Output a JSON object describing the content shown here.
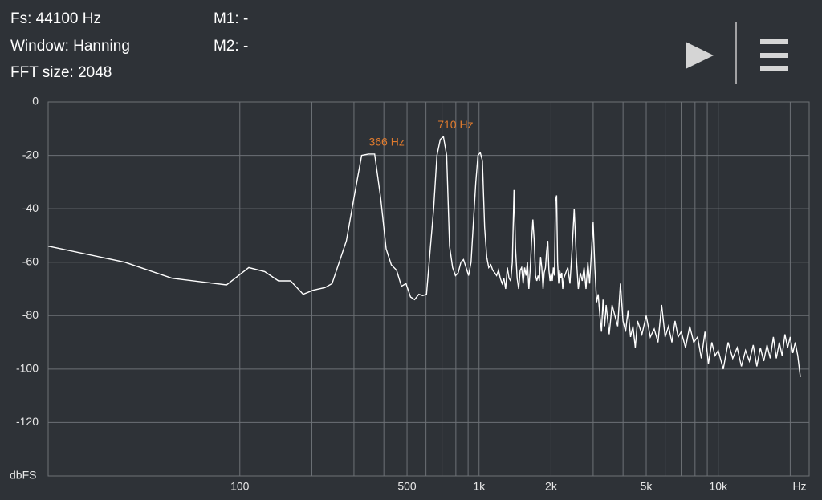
{
  "header": {
    "fs": "Fs: 44100 Hz",
    "window": "Window: Hanning",
    "fft_size": "FFT size: 2048",
    "m1": "M1: -",
    "m2": "M2: -"
  },
  "chart_data": {
    "type": "line",
    "x_label": "Hz",
    "y_label": "dbFS",
    "color": "#ffffff",
    "log_x": true,
    "grid": true,
    "xlim": [
      15.8,
      24000
    ],
    "ylim": [
      -140,
      0
    ],
    "xticks": [
      100,
      500,
      {
        "value": 1000,
        "label": "1k"
      },
      {
        "value": 2000,
        "label": "2k"
      },
      {
        "value": 5000,
        "label": "5k"
      },
      {
        "value": 10000,
        "label": "10k"
      }
    ],
    "xminor": [
      200,
      300,
      400,
      600,
      700,
      800,
      900,
      3000,
      4000,
      6000,
      7000,
      8000,
      9000,
      20000
    ],
    "yticks": [
      0,
      -20,
      -40,
      -60,
      -80,
      -100,
      -120
    ],
    "markers": [
      {
        "label": "366 Hz",
        "x": 366,
        "y": -19.5,
        "color": "#e07b2e"
      },
      {
        "label": "710 Hz",
        "x": 710,
        "y": -13,
        "color": "#e07b2e"
      }
    ],
    "x": [
      15.8,
      33,
      52,
      88,
      109,
      127,
      145,
      163,
      184,
      202,
      227,
      243,
      279,
      300,
      323,
      345,
      366,
      388,
      409,
      430,
      452,
      474,
      495,
      517,
      538,
      560,
      581,
      603,
      624,
      646,
      667,
      689,
      710,
      732,
      753,
      775,
      797,
      818,
      840,
      861,
      883,
      904,
      926,
      947,
      969,
      990,
      1012,
      1033,
      1055,
      1077,
      1098,
      1120,
      1141,
      1163,
      1184,
      1206,
      1227,
      1249,
      1270,
      1292,
      1313,
      1335,
      1356,
      1378,
      1400,
      1421,
      1443,
      1464,
      1486,
      1507,
      1529,
      1550,
      1572,
      1593,
      1615,
      1636,
      1658,
      1679,
      1701,
      1722,
      1744,
      1765,
      1787,
      1808,
      1830,
      1852,
      1873,
      1895,
      1916,
      1938,
      1959,
      1981,
      2002,
      2024,
      2045,
      2067,
      2088,
      2110,
      2131,
      2153,
      2174,
      2196,
      2217,
      2239,
      2260,
      2350,
      2400,
      2450,
      2500,
      2550,
      2600,
      2650,
      2700,
      2750,
      2800,
      2850,
      2900,
      3000,
      3050,
      3100,
      3150,
      3200,
      3250,
      3300,
      3350,
      3400,
      3500,
      3600,
      3700,
      3800,
      3900,
      4000,
      4100,
      4200,
      4300,
      4400,
      4500,
      4600,
      4800,
      5000,
      5200,
      5400,
      5600,
      5800,
      6000,
      6200,
      6400,
      6600,
      6800,
      7000,
      7300,
      7600,
      7900,
      8200,
      8500,
      8800,
      9100,
      9400,
      9700,
      10000,
      10500,
      11000,
      11500,
      12000,
      12500,
      13000,
      13500,
      14000,
      14500,
      15000,
      15500,
      16000,
      16500,
      17000,
      17500,
      18000,
      18500,
      19000,
      19500,
      20000,
      20500,
      21000,
      21500,
      22050
    ],
    "values": [
      -54,
      -60,
      -66,
      -68.5,
      -62,
      -63.5,
      -67,
      -67,
      -72,
      -70.5,
      -69.5,
      -68,
      -52,
      -36,
      -20,
      -19.5,
      -19.5,
      -36,
      -55,
      -61,
      -63,
      -69,
      -68,
      -73,
      -74,
      -72,
      -72.5,
      -72,
      -56,
      -40,
      -20,
      -14,
      -13,
      -20,
      -54,
      -62,
      -65,
      -64,
      -60,
      -59,
      -62,
      -65,
      -60,
      -45,
      -30,
      -20,
      -19,
      -22,
      -47,
      -58,
      -62,
      -61,
      -63,
      -64,
      -65,
      -63,
      -66,
      -68,
      -66,
      -70,
      -62,
      -66,
      -67,
      -60,
      -33,
      -55,
      -66,
      -70,
      -63,
      -62,
      -68,
      -62,
      -65,
      -60,
      -70,
      -63,
      -52,
      -44,
      -52,
      -65,
      -67,
      -65,
      -67,
      -58,
      -62,
      -70,
      -64,
      -62,
      -56,
      -52,
      -63,
      -67,
      -64,
      -67,
      -62,
      -65,
      -37,
      -35,
      -60,
      -68,
      -63,
      -66,
      -64,
      -70,
      -66,
      -62,
      -68,
      -55,
      -40,
      -58,
      -70,
      -64,
      -67,
      -62,
      -70,
      -60,
      -68,
      -45,
      -62,
      -75,
      -72,
      -80,
      -86,
      -74,
      -84,
      -76,
      -87,
      -76,
      -80,
      -84,
      -68,
      -82,
      -86,
      -78,
      -88,
      -84,
      -92,
      -82,
      -87,
      -80,
      -88,
      -85,
      -90,
      -76,
      -88,
      -84,
      -90,
      -82,
      -88,
      -86,
      -92,
      -84,
      -90,
      -88,
      -96,
      -86,
      -98,
      -90,
      -95,
      -93,
      -100,
      -90,
      -96,
      -92,
      -99,
      -93,
      -97,
      -91,
      -99,
      -92,
      -97,
      -91,
      -96,
      -88,
      -96,
      -90,
      -95,
      -87,
      -92,
      -88,
      -94,
      -90,
      -95,
      -103
    ]
  }
}
